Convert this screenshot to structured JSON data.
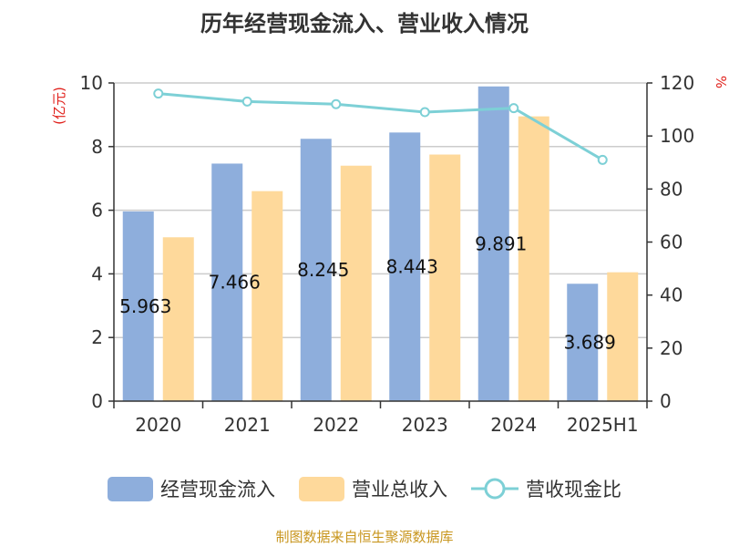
{
  "title": "历年经营现金流入、营业收入情况",
  "left_unit": "(亿元)",
  "right_unit": "%",
  "source": "制图数据来自恒生聚源数据库",
  "colors": {
    "cash_inflow": "#8eaedc",
    "revenue": "#fed99b",
    "ratio": "#7dd0d6",
    "grid": "#cccccc",
    "axis": "#333333"
  },
  "legend": [
    {
      "label": "经营现金流入",
      "color": "#8eaedc",
      "kind": "bar"
    },
    {
      "label": "营业总收入",
      "color": "#fed99b",
      "kind": "bar"
    },
    {
      "label": "营收现金比",
      "color": "#7dd0d6",
      "kind": "line"
    }
  ],
  "chart_data": {
    "type": "bar",
    "title": "历年经营现金流入、营业收入情况",
    "categories": [
      "2020",
      "2021",
      "2022",
      "2023",
      "2024",
      "2025H1"
    ],
    "series": [
      {
        "name": "经营现金流入",
        "type": "bar",
        "axis": "left",
        "values": [
          5.963,
          7.466,
          8.245,
          8.443,
          9.891,
          3.689
        ],
        "labels": [
          "5.963",
          "7.466",
          "8.245",
          "8.443",
          "9.891",
          "3.689"
        ]
      },
      {
        "name": "营业总收入",
        "type": "bar",
        "axis": "left",
        "values": [
          5.15,
          6.6,
          7.4,
          7.75,
          8.95,
          4.05
        ]
      },
      {
        "name": "营收现金比",
        "type": "line",
        "axis": "right",
        "values": [
          116,
          113,
          112,
          109,
          110.5,
          91
        ]
      }
    ],
    "ylabel": "(亿元)",
    "y2label": "%",
    "ylim": [
      0,
      10
    ],
    "y2lim": [
      0,
      120
    ],
    "yticks": [
      "0",
      "2",
      "4",
      "6",
      "8",
      "10"
    ],
    "y2ticks": [
      "0",
      "20",
      "40",
      "60",
      "80",
      "100",
      "120"
    ],
    "grid": true,
    "legend_position": "bottom"
  }
}
